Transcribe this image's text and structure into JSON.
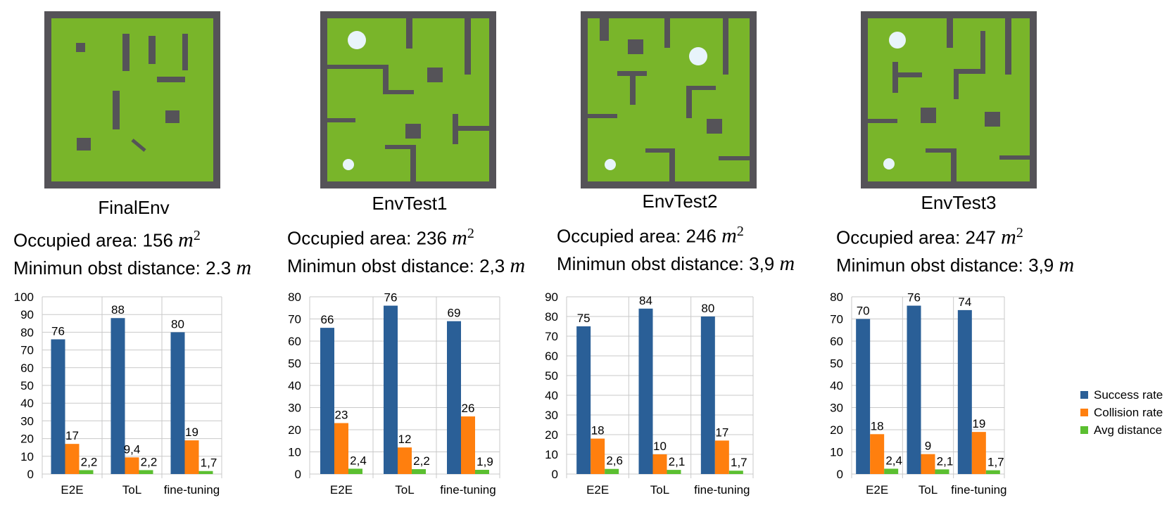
{
  "colors": {
    "success": "#2a5f97",
    "collision": "#ff7f0e",
    "distance": "#5bbf30",
    "grass": "#79b52a",
    "wall": "#555358",
    "grid": "#c9c9c9"
  },
  "panels": [
    {
      "name": "FinalEnv",
      "area_label": "Occupied area: 156 ",
      "area_unit": "m",
      "area_exp": "2",
      "distance_label": "Minimun obst distance: 2.3 ",
      "distance_unit": "m"
    },
    {
      "name": "EnvTest1",
      "area_label": "Occupied area: 236 ",
      "area_unit": "m",
      "area_exp": "2",
      "distance_label": "Minimun obst distance: 2,3 ",
      "distance_unit": "m"
    },
    {
      "name": "EnvTest2",
      "area_label": "Occupied area: 246 ",
      "area_unit": "m",
      "area_exp": "2",
      "distance_label": "Minimun obst distance: 3,9 ",
      "distance_unit": "m"
    },
    {
      "name": "EnvTest3",
      "area_label": "Occupied area: 247 ",
      "area_unit": "m",
      "area_exp": "2",
      "distance_label": "Minimun obst distance: 3,9 ",
      "distance_unit": "m"
    }
  ],
  "legend": {
    "success": "Success rate",
    "collision": "Collision rate",
    "distance": "Avg distance"
  },
  "chart_data": [
    {
      "type": "bar",
      "title": "FinalEnv",
      "categories": [
        "E2E",
        "ToL",
        "fine-tuning"
      ],
      "ylim": [
        0,
        100
      ],
      "yticks": [
        0,
        10,
        20,
        30,
        40,
        50,
        60,
        70,
        80,
        90,
        100
      ],
      "series": [
        {
          "name": "Success rate",
          "values": [
            76,
            88,
            80
          ],
          "labels": [
            "76",
            "88",
            "80"
          ]
        },
        {
          "name": "Collision rate",
          "values": [
            17,
            9.4,
            19
          ],
          "labels": [
            "17",
            "9,4",
            "19"
          ]
        },
        {
          "name": "Avg distance",
          "values": [
            2.2,
            2.2,
            1.7
          ],
          "labels": [
            "2,2",
            "2,2",
            "1,7"
          ]
        }
      ]
    },
    {
      "type": "bar",
      "title": "EnvTest1",
      "categories": [
        "E2E",
        "ToL",
        "fine-tuning"
      ],
      "ylim": [
        0,
        80
      ],
      "yticks": [
        0,
        10,
        20,
        30,
        40,
        50,
        60,
        70,
        80
      ],
      "series": [
        {
          "name": "Success rate",
          "values": [
            66,
            76,
            69
          ],
          "labels": [
            "66",
            "76",
            "69"
          ]
        },
        {
          "name": "Collision rate",
          "values": [
            23,
            12,
            26
          ],
          "labels": [
            "23",
            "12",
            "26"
          ]
        },
        {
          "name": "Avg distance",
          "values": [
            2.4,
            2.2,
            1.9
          ],
          "labels": [
            "2,4",
            "2,2",
            "1,9"
          ]
        }
      ]
    },
    {
      "type": "bar",
      "title": "EnvTest2",
      "categories": [
        "E2E",
        "ToL",
        "fine-tuning"
      ],
      "ylim": [
        0,
        90
      ],
      "yticks": [
        0,
        10,
        20,
        30,
        40,
        50,
        60,
        70,
        80,
        90
      ],
      "series": [
        {
          "name": "Success rate",
          "values": [
            75,
            84,
            80
          ],
          "labels": [
            "75",
            "84",
            "80"
          ]
        },
        {
          "name": "Collision rate",
          "values": [
            18,
            10,
            17
          ],
          "labels": [
            "18",
            "10",
            "17"
          ]
        },
        {
          "name": "Avg distance",
          "values": [
            2.6,
            2.1,
            1.7
          ],
          "labels": [
            "2,6",
            "2,1",
            "1,7"
          ]
        }
      ]
    },
    {
      "type": "bar",
      "title": "EnvTest3",
      "categories": [
        "E2E",
        "ToL",
        "fine-tuning"
      ],
      "ylim": [
        0,
        80
      ],
      "yticks": [
        0,
        10,
        20,
        30,
        40,
        50,
        60,
        70,
        80
      ],
      "series": [
        {
          "name": "Success rate",
          "values": [
            70,
            76,
            74
          ],
          "labels": [
            "70",
            "76",
            "74"
          ]
        },
        {
          "name": "Collision rate",
          "values": [
            18,
            9,
            19
          ],
          "labels": [
            "18",
            "9",
            "19"
          ]
        },
        {
          "name": "Avg distance",
          "values": [
            2.4,
            2.1,
            1.7
          ],
          "labels": [
            "2,4",
            "2,1",
            "1,7"
          ]
        }
      ]
    }
  ]
}
